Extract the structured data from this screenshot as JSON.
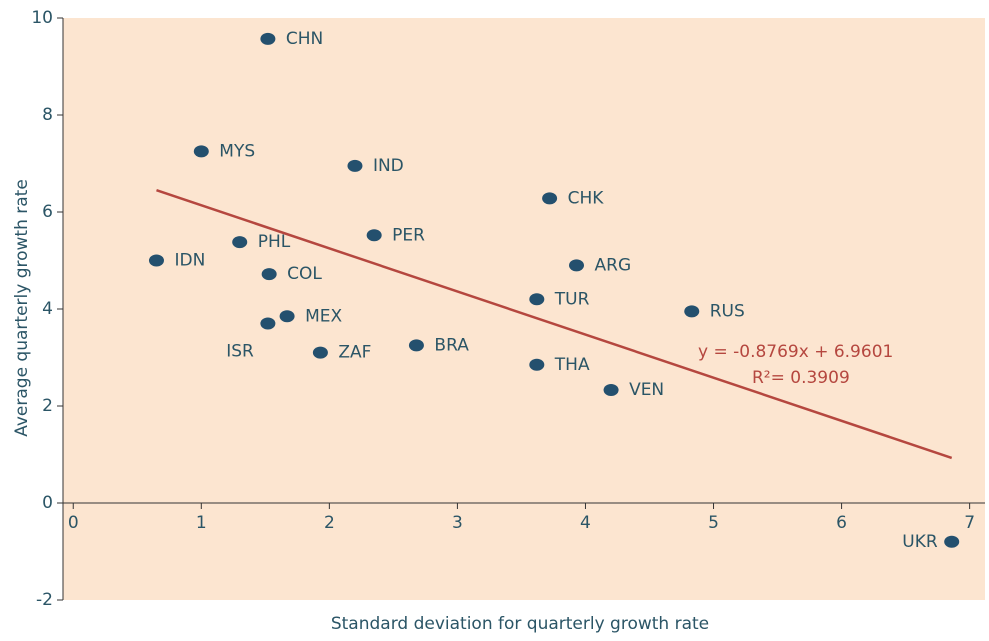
{
  "chart_data": {
    "type": "scatter",
    "x_label": "Standard deviation for quarterly growth rate",
    "y_label": "Average quarterly  growth rate",
    "labels": [
      "CHN",
      "MYS",
      "IND",
      "CHK",
      "PER",
      "PHL",
      "IDN",
      "COL",
      "ARG",
      "TUR",
      "RUS",
      "MEX",
      "ISR",
      "ZAF",
      "BRA",
      "THA",
      "VEN",
      "UKR"
    ],
    "x": [
      1.52,
      1.0,
      2.2,
      3.72,
      2.35,
      1.3,
      0.65,
      1.53,
      3.93,
      3.62,
      4.83,
      1.67,
      1.52,
      1.93,
      2.68,
      3.62,
      4.2,
      6.86
    ],
    "y": [
      9.57,
      7.25,
      6.95,
      6.28,
      5.52,
      5.38,
      5.0,
      4.72,
      4.9,
      4.2,
      3.95,
      3.85,
      3.7,
      3.1,
      3.25,
      2.85,
      2.33,
      -0.8
    ],
    "color": "#24506e",
    "trendline": {
      "x": [
        0.65,
        6.86
      ],
      "y": [
        6.45,
        0.93
      ],
      "color": "#b5473f",
      "equation": "y = -0.8769x + 6.9601",
      "r_squared": "R²= 0.3909"
    },
    "xlim": [
      -0.08,
      7.12
    ],
    "ylim": [
      -2,
      10
    ],
    "xticks": [
      0,
      1,
      2,
      3,
      4,
      5,
      6,
      7
    ],
    "yticks": [
      -2,
      0,
      2,
      4,
      6,
      8,
      10
    ],
    "background": "#fce5d0"
  }
}
